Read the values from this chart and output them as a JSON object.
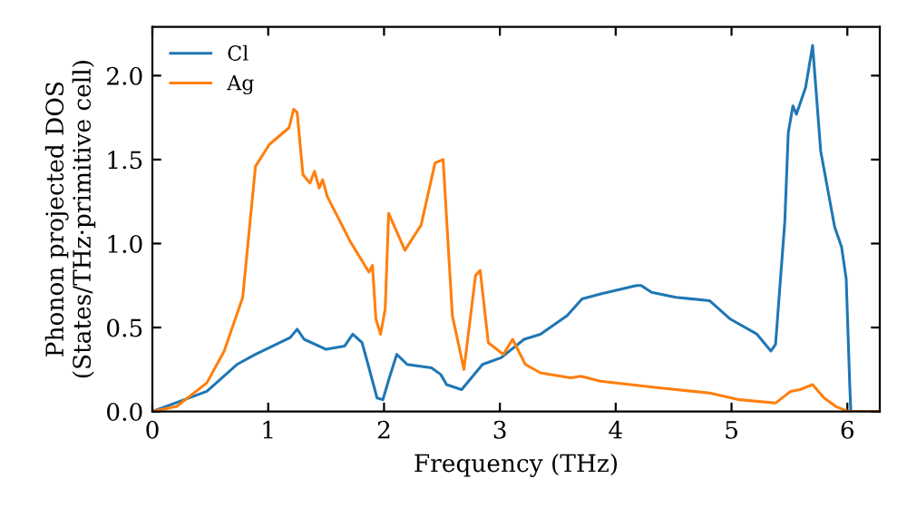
{
  "chart_data": {
    "type": "line",
    "xlabel": "Frequency (THz)",
    "ylabel": "Phonon projected DOS\n(States/THz·primitive cell)",
    "xlim": [
      0,
      6.28
    ],
    "ylim": [
      0,
      2.29
    ],
    "xticks": [
      0,
      1,
      2,
      3,
      4,
      5,
      6
    ],
    "yticks": [
      {
        "value": 0,
        "label": "0.0"
      },
      0.5,
      {
        "value": 1,
        "label": "1.0"
      },
      1.5,
      {
        "value": 2,
        "label": "2.0"
      }
    ],
    "grid": false,
    "legend": "top left",
    "series": [
      {
        "name": "Cl",
        "color": "#1f77b4",
        "x": [
          0,
          0.47,
          0.73,
          0.89,
          1.19,
          1.25,
          1.31,
          1.5,
          1.66,
          1.73,
          1.81,
          1.87,
          1.94,
          1.99,
          2.05,
          2.11,
          2.2,
          2.41,
          2.49,
          2.54,
          2.67,
          2.85,
          3.01,
          3.21,
          3.35,
          3.58,
          3.71,
          3.87,
          4.18,
          4.22,
          4.31,
          4.52,
          4.81,
          4.99,
          5.22,
          5.34,
          5.38,
          5.46,
          5.49,
          5.53,
          5.56,
          5.64,
          5.7,
          5.77,
          5.89,
          5.95,
          5.99,
          6.02,
          6.03
        ],
        "values": [
          0,
          0.12,
          0.28,
          0.34,
          0.44,
          0.49,
          0.43,
          0.37,
          0.39,
          0.46,
          0.41,
          0.26,
          0.08,
          0.07,
          0.21,
          0.34,
          0.28,
          0.26,
          0.22,
          0.16,
          0.13,
          0.28,
          0.32,
          0.43,
          0.46,
          0.57,
          0.67,
          0.7,
          0.75,
          0.75,
          0.71,
          0.68,
          0.66,
          0.55,
          0.46,
          0.36,
          0.4,
          1.13,
          1.66,
          1.82,
          1.77,
          1.93,
          2.18,
          1.55,
          1.1,
          0.98,
          0.79,
          0.17,
          0
        ]
      },
      {
        "name": "Ag",
        "color": "#ff7f0e",
        "x": [
          0,
          0.21,
          0.47,
          0.62,
          0.78,
          0.89,
          1.01,
          1.18,
          1.22,
          1.25,
          1.3,
          1.36,
          1.4,
          1.44,
          1.47,
          1.51,
          1.71,
          1.87,
          1.9,
          1.93,
          1.97,
          2.01,
          2.04,
          2.18,
          2.32,
          2.44,
          2.51,
          2.59,
          2.69,
          2.79,
          2.83,
          2.9,
          3.03,
          3.11,
          3.22,
          3.35,
          3.61,
          3.7,
          3.87,
          4.39,
          4.81,
          5.07,
          5.38,
          5.51,
          5.59,
          5.7,
          5.8,
          5.9,
          6.01,
          6.28
        ],
        "values": [
          0,
          0.03,
          0.17,
          0.36,
          0.68,
          1.46,
          1.59,
          1.69,
          1.8,
          1.78,
          1.41,
          1.36,
          1.43,
          1.33,
          1.38,
          1.28,
          1.01,
          0.83,
          0.87,
          0.55,
          0.46,
          0.61,
          1.18,
          0.96,
          1.11,
          1.48,
          1.5,
          0.57,
          0.25,
          0.81,
          0.84,
          0.41,
          0.34,
          0.43,
          0.28,
          0.23,
          0.2,
          0.21,
          0.18,
          0.14,
          0.11,
          0.07,
          0.05,
          0.12,
          0.13,
          0.16,
          0.08,
          0.03,
          0,
          0
        ]
      }
    ]
  }
}
